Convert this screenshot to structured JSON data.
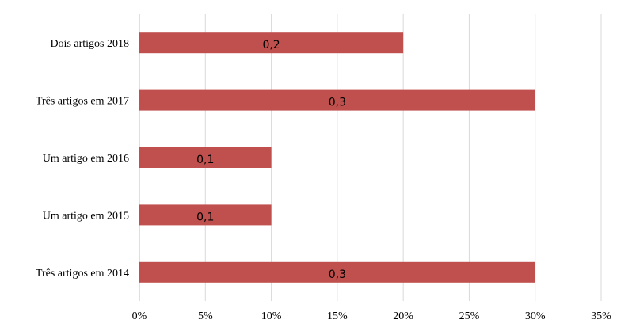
{
  "chart_data": {
    "type": "bar",
    "orientation": "horizontal",
    "categories": [
      "Dois artigos 2018",
      "Três artigos em 2017",
      "Um artigo em 2016",
      "Um artigo em 2015",
      "Três artigos em 2014"
    ],
    "values": [
      0.2,
      0.3,
      0.1,
      0.1,
      0.3
    ],
    "data_labels": [
      "0,2",
      "0,3",
      "0,1",
      "0,1",
      "0,3"
    ],
    "x_ticks": [
      "0%",
      "5%",
      "10%",
      "15%",
      "20%",
      "25%",
      "30%",
      "35%"
    ],
    "xlim": [
      0,
      0.35
    ],
    "grid": true,
    "legend": "none",
    "bar_color": "#c0504d"
  }
}
